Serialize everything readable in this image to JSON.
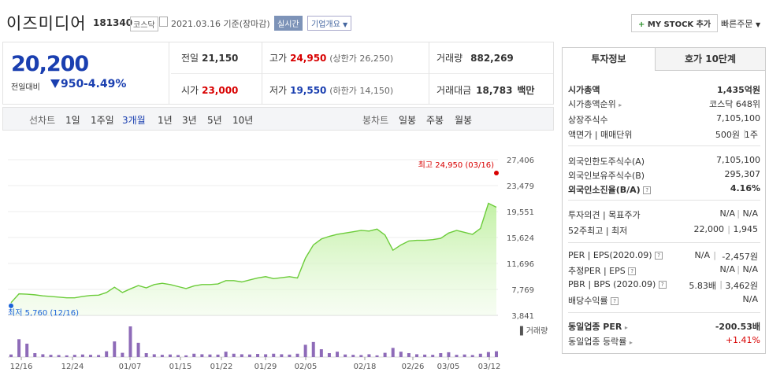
{
  "header": {
    "company": "이즈미디어",
    "code": "181340",
    "market": "코스닥",
    "date_basis": "2021.03.16 기준(장마감)",
    "live_label": "실시간",
    "overview_label": "기업개요",
    "mystock_label": "MY STOCK 추가",
    "quick_order": "빠른주문"
  },
  "price": {
    "current": "20,200",
    "prev_label": "전일대비",
    "change": "950",
    "change_pct": "-4.49%",
    "prev_close_label": "전일",
    "prev_close": "21,150",
    "open_label": "시가",
    "open": "23,000",
    "high_label": "고가",
    "high": "24,950",
    "upper_limit": "(상한가 26,250)",
    "low_label": "저가",
    "low": "19,550",
    "lower_limit": "(하한가 14,150)",
    "volume_label": "거래량",
    "volume": "882,269",
    "amount_label": "거래대금",
    "amount": "18,783",
    "amount_unit": "백만"
  },
  "periods": {
    "line_label": "선차트",
    "items": [
      "1일",
      "1주일",
      "3개월",
      "1년",
      "3년",
      "5년",
      "10년"
    ],
    "selected": "3개월",
    "candle_label": "봉차트",
    "candles": [
      "일봉",
      "주봉",
      "월봉"
    ]
  },
  "chart_data": {
    "type": "area",
    "y_ticks": [
      "27,406",
      "23,479",
      "19,551",
      "15,624",
      "11,696",
      "7,769",
      "3,841"
    ],
    "ylim": [
      3841,
      27406
    ],
    "x_labels": [
      "12/16",
      "12/24",
      "01/07",
      "01/15",
      "01/22",
      "01/29",
      "02/05",
      "02/18",
      "02/26",
      "03/05",
      "03/12"
    ],
    "max_annotation": "최고 24,950 (03/16)",
    "min_annotation": "최저 5,760 (12/16)",
    "volume_label": "거래량",
    "x_index": [
      0,
      1,
      2,
      3,
      4,
      5,
      6,
      7,
      8,
      9,
      10,
      11,
      12,
      13,
      14,
      15,
      16,
      17,
      18,
      19,
      20,
      21,
      22,
      23,
      24,
      25,
      26,
      27,
      28,
      29,
      30,
      31,
      32,
      33,
      34,
      35,
      36,
      37,
      38,
      39,
      40,
      41,
      42,
      43,
      44,
      45,
      46,
      47,
      48,
      49,
      50,
      51,
      52,
      53,
      54,
      55,
      56,
      57,
      58,
      59,
      60,
      61
    ],
    "close": [
      5760,
      7100,
      7050,
      6950,
      6800,
      6700,
      6600,
      6500,
      6500,
      6700,
      6850,
      6900,
      7300,
      8100,
      7300,
      7850,
      8350,
      8000,
      8500,
      8700,
      8500,
      8200,
      7900,
      8300,
      8500,
      8500,
      8600,
      9100,
      9100,
      8900,
      9200,
      9500,
      9700,
      9400,
      9550,
      9700,
      9500,
      12500,
      14500,
      15400,
      15800,
      16100,
      16300,
      16500,
      16700,
      16600,
      16900,
      16000,
      13700,
      14500,
      15100,
      15200,
      15200,
      15300,
      15500,
      16300,
      16700,
      16400,
      16100,
      17000,
      20800,
      20200
    ],
    "volume": [
      230,
      1600,
      1200,
      350,
      250,
      200,
      180,
      150,
      200,
      230,
      200,
      180,
      520,
      1400,
      380,
      2750,
      1280,
      350,
      250,
      200,
      230,
      180,
      150,
      300,
      250,
      230,
      220,
      480,
      300,
      250,
      230,
      280,
      250,
      300,
      250,
      220,
      300,
      1100,
      1350,
      700,
      350,
      480,
      230,
      200,
      180,
      250,
      150,
      380,
      820,
      480,
      350,
      250,
      220,
      200,
      350,
      430,
      200,
      230,
      180,
      300,
      450,
      520
    ]
  },
  "right_panel": {
    "tab_invest": "투자정보",
    "tab_ask": "호가 10단계",
    "market_cap_label": "시가총액",
    "market_cap": "1,435억원",
    "market_cap_rank_label": "시가총액순위",
    "market_cap_rank": "코스닥 648위",
    "shares_label": "상장주식수",
    "shares": "7,105,100",
    "par_label": "액면가 | 매매단위",
    "par": "500원",
    "unit": "1주",
    "foreign_limit_label": "외국인한도주식수(A)",
    "foreign_limit": "7,105,100",
    "foreign_hold_label": "외국인보유주식수(B)",
    "foreign_hold": "295,307",
    "foreign_ratio_label": "외국인소진율(B/A)",
    "foreign_ratio": "4.16%",
    "opinion_label": "투자의견 | 목표주가",
    "opinion": "N/A",
    "target": "N/A",
    "w52_label": "52주최고 | 최저",
    "w52_high": "22,000",
    "w52_low": "1,945",
    "per_label": "PER | EPS(2020.09)",
    "per": "N/A",
    "eps": "-2,457원",
    "est_label": "추정PER | EPS",
    "est_per": "N/A",
    "est_eps": "N/A",
    "pbr_label": "PBR | BPS (2020.09)",
    "pbr": "5.83배",
    "bps": "3,462원",
    "div_label": "배당수익률",
    "div": "N/A",
    "sector_per_label": "동일업종 PER",
    "sector_per": "-200.53배",
    "sector_rate_label": "동일업종 등락률",
    "sector_rate": "+1.41%"
  }
}
